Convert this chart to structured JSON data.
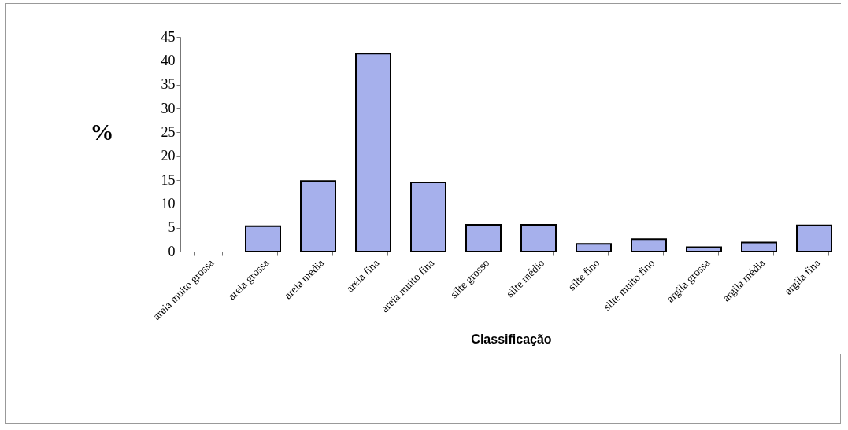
{
  "chart_data": {
    "type": "bar",
    "xlabel": "Classificação",
    "ylabel": "%",
    "categories": [
      "areia muito grossa",
      "areia grossa",
      "areia media",
      "areia fina",
      "areia muito fina",
      "silte grosso",
      "silte médio",
      "silte fino",
      "silte muito fino",
      "argila grossa",
      "argila média",
      "argila fina"
    ],
    "values": [
      0,
      5.3,
      14.8,
      41.5,
      14.5,
      5.6,
      5.6,
      1.6,
      2.6,
      0.9,
      1.9,
      5.5
    ],
    "color": "#a6b0ec",
    "ylim": [
      0,
      45
    ],
    "yticks": [
      0,
      5,
      10,
      15,
      20,
      25,
      30,
      35,
      40,
      45
    ],
    "grid": false
  }
}
